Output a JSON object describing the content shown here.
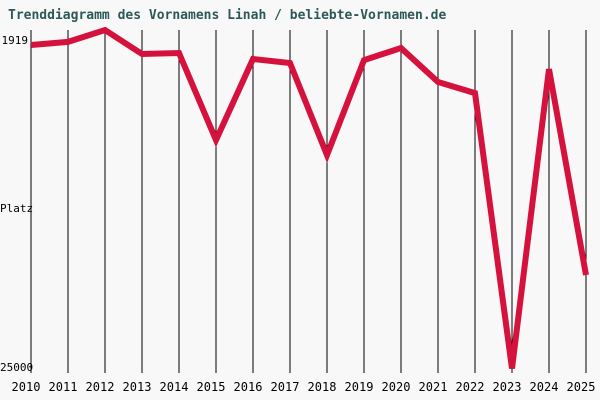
{
  "title": "Trenddiagramm des Vornamens Linah / beliebte-Vornamen.de",
  "colors": {
    "background": "#f8f8f8",
    "title": "#2e5858",
    "grid": "#000000",
    "label": "#000000",
    "line": "#d5123d"
  },
  "axis": {
    "top_label": "1919",
    "mid_label": "Platz",
    "bottom_label": "25000"
  },
  "chart_data": {
    "type": "line",
    "title": "Trenddiagramm des Vornamens Linah / beliebte-Vornamen.de",
    "series_name": "Linah",
    "xlabel": "",
    "ylabel": "Platz",
    "x": [
      2010,
      2011,
      2012,
      2013,
      2014,
      2015,
      2016,
      2017,
      2018,
      2019,
      2020,
      2021,
      2022,
      2023,
      2024,
      2025
    ],
    "values": [
      2940,
      2730,
      1919,
      3550,
      3480,
      9390,
      3890,
      4160,
      10410,
      3960,
      3140,
      5450,
      6200,
      24900,
      4570,
      18550
    ],
    "ylim": [
      1919,
      25000
    ],
    "y_axis_inverted": true,
    "yticks": [
      "1919",
      "25000"
    ],
    "grid": "vertical-only",
    "legend": "none",
    "line_color": "#d5123d",
    "line_width": 6
  }
}
